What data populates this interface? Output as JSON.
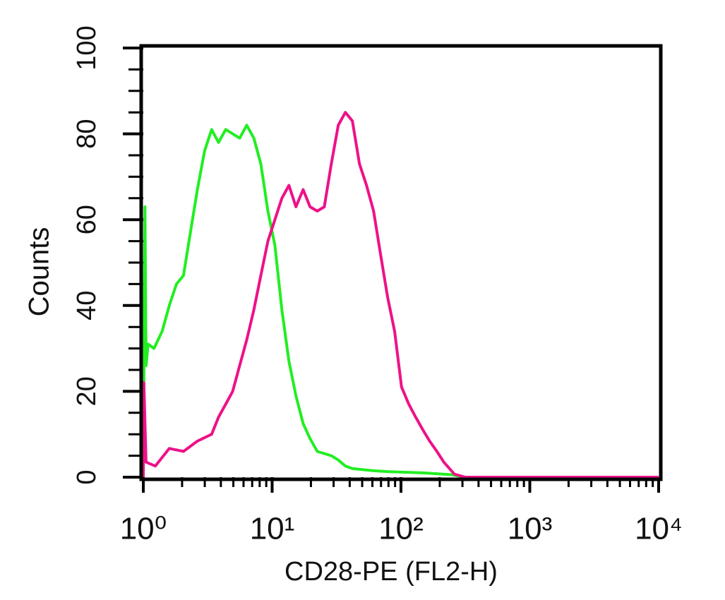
{
  "chart_data": {
    "type": "line",
    "xlabel": "CD28-PE (FL2-H)",
    "ylabel": "Counts",
    "xscale": "log",
    "xlim": [
      1,
      10000
    ],
    "xticks": [
      {
        "value": 1,
        "label": "10⁰"
      },
      {
        "value": 10,
        "label": "10¹"
      },
      {
        "value": 100,
        "label": "10²"
      },
      {
        "value": 1000,
        "label": "10³"
      },
      {
        "value": 10000,
        "label": "10⁴"
      }
    ],
    "xminorticks": [
      2,
      3,
      4,
      5,
      6,
      7,
      8,
      9,
      20,
      30,
      40,
      50,
      60,
      70,
      80,
      90,
      200,
      300,
      400,
      500,
      600,
      700,
      800,
      900,
      2000,
      3000,
      4000,
      5000,
      6000,
      7000,
      8000,
      9000
    ],
    "ylim": [
      0,
      100
    ],
    "yticks": [
      0,
      20,
      40,
      60,
      80,
      100
    ],
    "yminorticks": [
      5,
      10,
      15,
      25,
      30,
      35,
      45,
      50,
      55,
      65,
      70,
      75,
      85,
      90,
      95
    ],
    "series": [
      {
        "color": "#22ee22",
        "x": [
          1,
          1.03,
          1.05,
          1.09,
          1.21,
          1.4,
          1.59,
          1.81,
          2.05,
          2.32,
          2.63,
          2.99,
          3.39,
          3.84,
          4.36,
          4.94,
          5.6,
          6.35,
          7.21,
          8.17,
          9.27,
          10.5,
          11.9,
          13.5,
          15.3,
          17.4,
          19.7,
          22.4,
          28.8,
          32.6,
          37.0,
          42.0,
          61.3,
          78.7,
          148,
          246,
          316,
          10000
        ],
        "values": [
          0,
          63,
          26,
          31,
          30,
          34,
          40,
          45,
          47,
          57,
          67,
          76,
          81,
          78,
          81,
          80,
          79,
          82,
          79,
          73,
          62,
          54,
          39,
          27,
          19,
          12.5,
          9,
          6,
          5,
          4,
          2.6,
          2,
          1.5,
          1.3,
          1,
          0.6,
          0,
          0
        ]
      },
      {
        "color": "#ee1188",
        "x": [
          1,
          1.01,
          1.05,
          1.24,
          1.59,
          2.05,
          2.63,
          3.39,
          3.84,
          4.36,
          4.94,
          5.6,
          6.35,
          7.21,
          8.17,
          9.27,
          10.5,
          11.9,
          13.5,
          15.3,
          17.4,
          19.7,
          22.4,
          25.4,
          28.8,
          32.6,
          37.0,
          42.0,
          47.6,
          54.0,
          61.3,
          69.4,
          78.7,
          89.3,
          101,
          115,
          130,
          148,
          167,
          190,
          215,
          260,
          316,
          10000
        ],
        "values": [
          0,
          22,
          3.5,
          2.6,
          6.7,
          6,
          8.4,
          10,
          14,
          17,
          20,
          26,
          32,
          39,
          47,
          55,
          60,
          65,
          68,
          63,
          67,
          63,
          62,
          63,
          73,
          82,
          85,
          83,
          73,
          68,
          62,
          52,
          42,
          34,
          21,
          17,
          14,
          11,
          8.4,
          6,
          3.5,
          0.7,
          0,
          0
        ]
      }
    ]
  }
}
